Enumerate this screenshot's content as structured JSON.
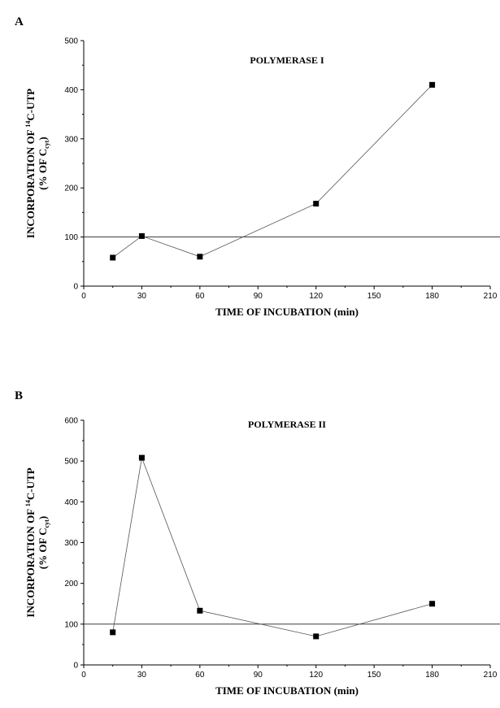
{
  "chart_data": [
    {
      "panel": "A",
      "type": "line",
      "title": "POLYMERASE I",
      "xlabel": "TIME OF INCUBATION (min)",
      "ylabel": {
        "line1_pre": "INCORPORATION OF ",
        "line1_sup": "14",
        "line1_post": "C-UTP",
        "line2_pre": "(% OF C",
        "line2_sub": "cyt",
        "line2_post": ")"
      },
      "xlim": [
        0,
        210
      ],
      "ylim": [
        0,
        500
      ],
      "xticks": [
        0,
        30,
        60,
        90,
        120,
        150,
        180,
        210
      ],
      "yticks": [
        0,
        100,
        200,
        300,
        400,
        500
      ],
      "reference_line": 100,
      "series": [
        {
          "x": [
            15,
            30,
            60,
            120,
            180
          ],
          "y": [
            58,
            102,
            60,
            168,
            410
          ]
        }
      ]
    },
    {
      "panel": "B",
      "type": "line",
      "title": "POLYMERASE II",
      "xlabel": "TIME OF INCUBATION (min)",
      "ylabel": {
        "line1_pre": "INCORPORATION OF ",
        "line1_sup": "14",
        "line1_post": "C-UTP",
        "line2_pre": "(% OF C",
        "line2_sub": "cyt",
        "line2_post": ")"
      },
      "xlim": [
        0,
        210
      ],
      "ylim": [
        0,
        600
      ],
      "xticks": [
        0,
        30,
        60,
        90,
        120,
        150,
        180,
        210
      ],
      "yticks": [
        0,
        100,
        200,
        300,
        400,
        500,
        600
      ],
      "reference_line": 100,
      "series": [
        {
          "x": [
            15,
            30,
            60,
            120,
            180
          ],
          "y": [
            80,
            508,
            133,
            70,
            150
          ]
        }
      ]
    }
  ]
}
